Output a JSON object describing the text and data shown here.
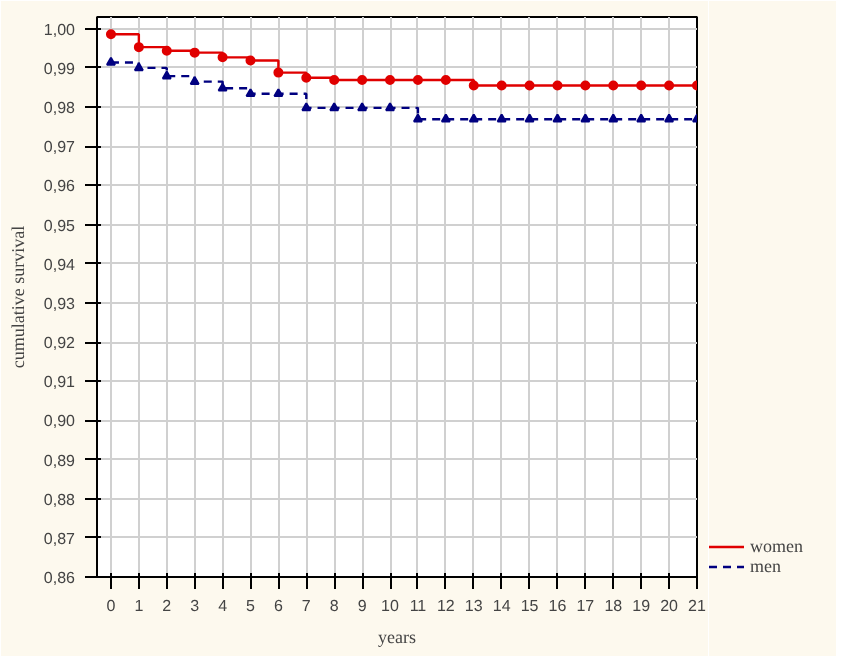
{
  "chart_data": {
    "type": "step",
    "xlabel": "years",
    "ylabel": "cumulative survival",
    "x": [
      0,
      1,
      2,
      3,
      4,
      5,
      6,
      7,
      8,
      9,
      10,
      11,
      12,
      13,
      14,
      15,
      16,
      17,
      18,
      19,
      20,
      21
    ],
    "series": [
      {
        "name": "women",
        "color": "#e00000",
        "marker": "circle",
        "line_style": "solid",
        "values": [
          0.9986,
          0.9953,
          0.9944,
          0.9939,
          0.9927,
          0.9919,
          0.9888,
          0.9875,
          0.9869,
          0.9869,
          0.9869,
          0.9869,
          0.9869,
          0.9855,
          0.9855,
          0.9855,
          0.9855,
          0.9855,
          0.9855,
          0.9855,
          0.9855,
          0.9855
        ]
      },
      {
        "name": "men",
        "color": "#000080",
        "marker": "triangle",
        "line_style": "dashed",
        "values": [
          0.9914,
          0.99,
          0.9879,
          0.9865,
          0.9848,
          0.9834,
          0.9834,
          0.9798,
          0.9798,
          0.9798,
          0.9798,
          0.9769,
          0.9769,
          0.9769,
          0.9769,
          0.9769,
          0.9769,
          0.9769,
          0.9769,
          0.9769,
          0.9769,
          0.9769
        ]
      }
    ],
    "xlim": [
      -0.5,
      21
    ],
    "ylim": [
      0.86,
      1.003
    ],
    "xticks": [
      0,
      1,
      2,
      3,
      4,
      5,
      6,
      7,
      8,
      9,
      10,
      11,
      12,
      13,
      14,
      15,
      16,
      17,
      18,
      19,
      20,
      21
    ],
    "yticks": [
      {
        "value": 0.86,
        "label": "0,86"
      },
      {
        "value": 0.87,
        "label": "0,87"
      },
      {
        "value": 0.88,
        "label": "0,88"
      },
      {
        "value": 0.89,
        "label": "0,89"
      },
      {
        "value": 0.9,
        "label": "0,90"
      },
      {
        "value": 0.91,
        "label": "0,91"
      },
      {
        "value": 0.92,
        "label": "0,92"
      },
      {
        "value": 0.93,
        "label": "0,93"
      },
      {
        "value": 0.94,
        "label": "0,94"
      },
      {
        "value": 0.95,
        "label": "0,95"
      },
      {
        "value": 0.96,
        "label": "0,96"
      },
      {
        "value": 0.97,
        "label": "0,97"
      },
      {
        "value": 0.98,
        "label": "0,98"
      },
      {
        "value": 0.99,
        "label": "0,99"
      },
      {
        "value": 1.0,
        "label": "1,00"
      }
    ],
    "grid": true,
    "legend": "bottom right"
  }
}
